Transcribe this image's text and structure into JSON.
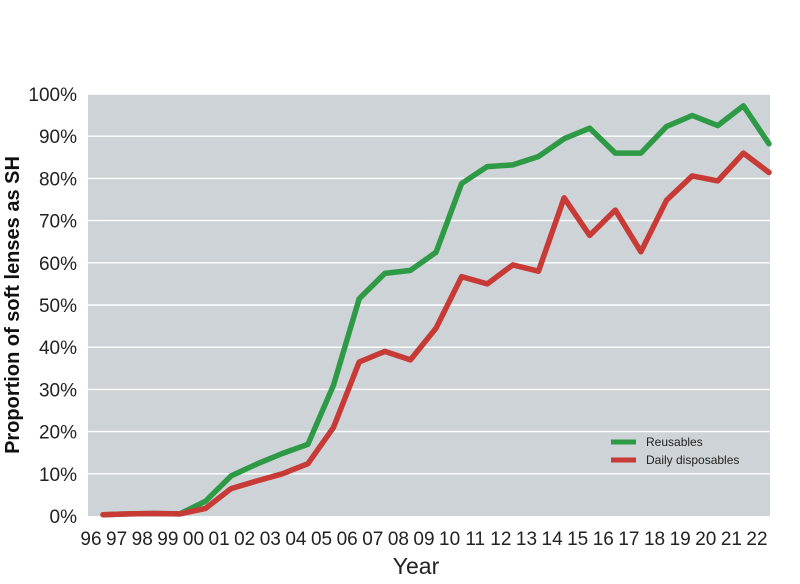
{
  "chart_data": {
    "type": "line",
    "title": "",
    "xlabel": "Year",
    "ylabel": "Proportion of soft lenses as SH",
    "categories": [
      "96",
      "97",
      "98",
      "99",
      "00",
      "01",
      "02",
      "03",
      "04",
      "05",
      "06",
      "07",
      "08",
      "09",
      "10",
      "11",
      "12",
      "13",
      "14",
      "15",
      "16",
      "17",
      "18",
      "19",
      "20",
      "21",
      "22"
    ],
    "yticks": [
      "0%",
      "10%",
      "20%",
      "30%",
      "40%",
      "50%",
      "60%",
      "70%",
      "80%",
      "90%",
      "100%"
    ],
    "ylim": [
      0,
      100
    ],
    "grid": true,
    "legend_position": "lower-right",
    "background_color": "#cdd3d6",
    "series": [
      {
        "name": "Reusables",
        "color": "#2e9a45",
        "values": [
          0.3,
          0.5,
          0.6,
          0.5,
          3.5,
          9.5,
          12.3,
          14.8,
          17.0,
          31.0,
          51.5,
          57.5,
          58.2,
          62.5,
          78.8,
          82.8,
          83.2,
          85.2,
          89.4,
          91.9,
          86.0,
          86.0,
          92.3,
          94.9,
          92.5,
          97.2,
          88.2
        ]
      },
      {
        "name": "Daily disposables",
        "color": "#c73a36",
        "values": [
          0.3,
          0.5,
          0.6,
          0.5,
          1.8,
          6.5,
          8.3,
          10.0,
          12.4,
          21.0,
          36.5,
          39.0,
          37.0,
          44.5,
          56.7,
          55.0,
          59.5,
          58.0,
          75.4,
          66.5,
          72.5,
          62.6,
          74.8,
          80.6,
          79.4,
          86.0,
          81.4
        ]
      }
    ]
  }
}
